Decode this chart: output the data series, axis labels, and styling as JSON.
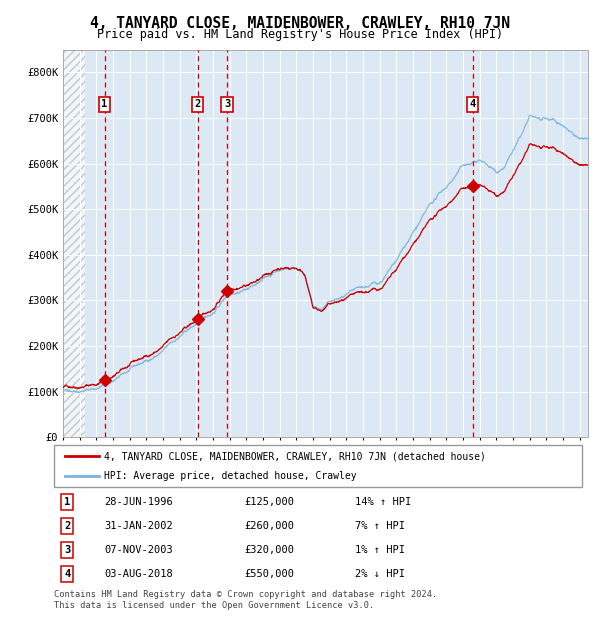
{
  "title": "4, TANYARD CLOSE, MAIDENBOWER, CRAWLEY, RH10 7JN",
  "subtitle": "Price paid vs. HM Land Registry's House Price Index (HPI)",
  "xlim": [
    1994.0,
    2025.5
  ],
  "ylim": [
    0,
    850000
  ],
  "yticks": [
    0,
    100000,
    200000,
    300000,
    400000,
    500000,
    600000,
    700000,
    800000
  ],
  "ytick_labels": [
    "£0",
    "£100K",
    "£200K",
    "£300K",
    "£400K",
    "£500K",
    "£600K",
    "£700K",
    "£800K"
  ],
  "plot_bg_color": "#dce9f5",
  "hatch_bg_color": "#c8c8c8",
  "hpi_color": "#7ab3d9",
  "price_color": "#cc0000",
  "vline_color": "#cc0000",
  "grid_color": "#ffffff",
  "spine_color": "#aaaaaa",
  "purchases": [
    {
      "label": "1",
      "date": 1996.49,
      "price": 125000,
      "display_date": "28-JUN-1996",
      "display_price": "£125,000",
      "hpi_pct": "14%",
      "direction": "↑"
    },
    {
      "label": "2",
      "date": 2002.08,
      "price": 260000,
      "display_date": "31-JAN-2002",
      "display_price": "£260,000",
      "hpi_pct": "7%",
      "direction": "↑"
    },
    {
      "label": "3",
      "date": 2003.84,
      "price": 320000,
      "display_date": "07-NOV-2003",
      "display_price": "£320,000",
      "hpi_pct": "1%",
      "direction": "↑"
    },
    {
      "label": "4",
      "date": 2018.58,
      "price": 550000,
      "display_date": "03-AUG-2018",
      "display_price": "£550,000",
      "hpi_pct": "2%",
      "direction": "↓"
    }
  ],
  "legend_line1": "4, TANYARD CLOSE, MAIDENBOWER, CRAWLEY, RH10 7JN (detached house)",
  "legend_line2": "HPI: Average price, detached house, Crawley",
  "footer1": "Contains HM Land Registry data © Crown copyright and database right 2024.",
  "footer2": "This data is licensed under the Open Government Licence v3.0.",
  "hpi_anchors_x": [
    1994,
    1995,
    1996,
    1997,
    1998,
    1999,
    2000,
    2001,
    2002,
    2003,
    2004,
    2005,
    2006,
    2007,
    2008,
    2008.5,
    2009,
    2009.5,
    2010,
    2011,
    2012,
    2013,
    2014,
    2015,
    2016,
    2017,
    2018,
    2018.5,
    2019,
    2020,
    2020.5,
    2021,
    2021.5,
    2022,
    2022.5,
    2023,
    2023.5,
    2024,
    2024.5,
    2025,
    2025.4
  ],
  "hpi_anchors_y": [
    100000,
    108000,
    115000,
    132000,
    152000,
    168000,
    190000,
    218000,
    243000,
    268000,
    315000,
    332000,
    348000,
    372000,
    378000,
    370000,
    293000,
    285000,
    300000,
    308000,
    312000,
    322000,
    362000,
    422000,
    472000,
    512000,
    558000,
    562000,
    568000,
    543000,
    560000,
    590000,
    620000,
    655000,
    648000,
    640000,
    635000,
    625000,
    615000,
    605000,
    600000
  ]
}
